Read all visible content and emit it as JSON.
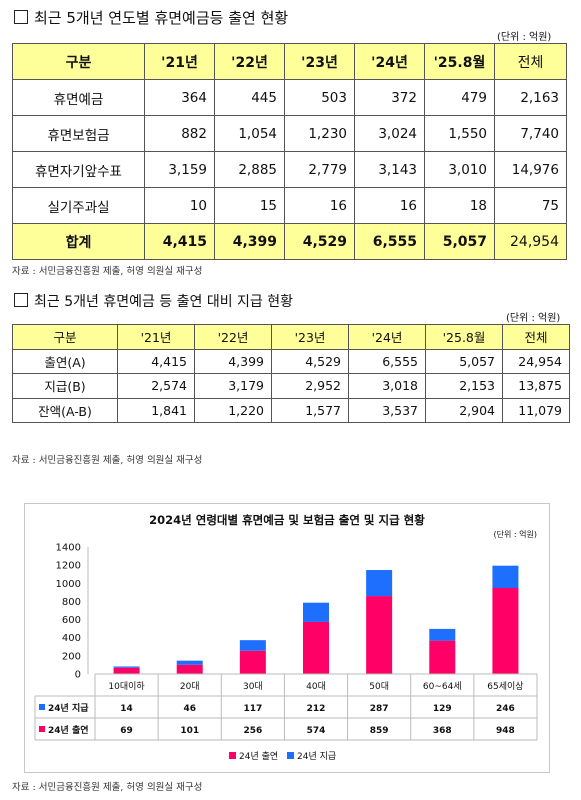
{
  "section1": {
    "title": "최근 5개년 연도별 휴면예금등 출연 현황",
    "unit": "(단위 : 억원)",
    "header": [
      "구분",
      "'21년",
      "'22년",
      "'23년",
      "'24년",
      "'25.8월",
      "전체"
    ],
    "rows": [
      [
        "휴면예금",
        "364",
        "445",
        "503",
        "372",
        "479",
        "2,163"
      ],
      [
        "휴면보험금",
        "882",
        "1,054",
        "1,230",
        "3,024",
        "1,550",
        "7,740"
      ],
      [
        "휴면자기앞수표",
        "3,159",
        "2,885",
        "2,779",
        "3,143",
        "3,010",
        "14,976"
      ],
      [
        "실기주과실",
        "10",
        "15",
        "16",
        "16",
        "18",
        "75"
      ]
    ],
    "total": [
      "합계",
      "4,415",
      "4,399",
      "4,529",
      "6,555",
      "5,057",
      "24,954"
    ],
    "source": "자료 : 서민금융진흥원 제출, 허영 의원실 재구성"
  },
  "section2": {
    "title": "최근 5개년 휴면예금 등 출연 대비 지급 현황",
    "unit": "(단위 : 억원)",
    "header": [
      "구분",
      "'21년",
      "'22년",
      "'23년",
      "'24년",
      "'25.8월",
      "전체"
    ],
    "rows": [
      [
        "출연(A)",
        "4,415",
        "4,399",
        "4,529",
        "6,555",
        "5,057",
        "24,954"
      ],
      [
        "지급(B)",
        "2,574",
        "3,179",
        "2,952",
        "3,018",
        "2,153",
        "13,875"
      ],
      [
        "잔액(A-B)",
        "1,841",
        "1,220",
        "1,577",
        "3,537",
        "2,904",
        "11,079"
      ]
    ],
    "source": "자료 : 서민금융진흥원 제출, 허영 의원실 재구성"
  },
  "chart_data": {
    "type": "bar",
    "stacked": true,
    "title": "2024년 연령대별 휴면예금 및 보험금 출연 및 지급 현황",
    "unit": "(단위 : 억원)",
    "categories": [
      "10대이하",
      "20대",
      "30대",
      "40대",
      "50대",
      "60~64세",
      "65세이상"
    ],
    "series": [
      {
        "name": "24년 출연",
        "values": [
          69,
          101,
          256,
          574,
          859,
          368,
          948
        ],
        "color": "#ff0066"
      },
      {
        "name": "24년 지급",
        "values": [
          14,
          46,
          117,
          212,
          287,
          129,
          246
        ],
        "color": "#1f6fff"
      }
    ],
    "ylim": [
      0,
      1400
    ],
    "yticks": [
      0,
      200,
      400,
      600,
      800,
      1000,
      1200,
      1400
    ],
    "grid": false,
    "legend": "bottom",
    "data_table": true,
    "table_rows": [
      {
        "label": "24년 지급",
        "values": [
          "14",
          "46",
          "117",
          "212",
          "287",
          "129",
          "246"
        ]
      },
      {
        "label": "24년 출연",
        "values": [
          "69",
          "101",
          "256",
          "574",
          "859",
          "368",
          "948"
        ]
      }
    ]
  },
  "source3": "자료 : 서민금융진흥원 제출, 허영 의원실 재구성"
}
